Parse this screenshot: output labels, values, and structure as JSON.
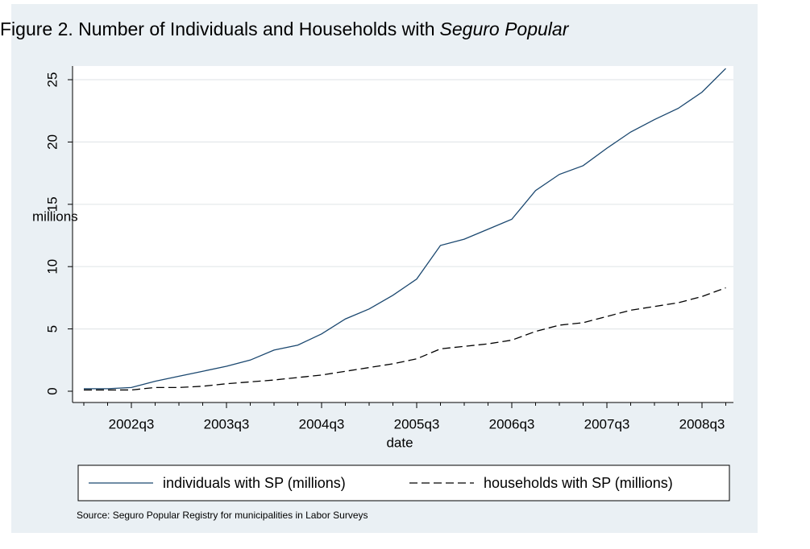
{
  "chart_data": {
    "type": "line",
    "title": "Figure 2. Number of Individuals and Households with",
    "title_emphasis": "Seguro Popular",
    "y_label": "millions",
    "x_label": "date",
    "source": "Source: Seguro Popular Registry for municipalities in Labor Surveys",
    "categories": [
      null,
      null,
      "2002q3",
      null,
      null,
      null,
      "2003q3",
      null,
      null,
      null,
      "2004q3",
      null,
      null,
      null,
      "2005q3",
      null,
      null,
      null,
      "2006q3",
      null,
      null,
      null,
      "2007q3",
      null,
      null,
      null,
      "2008q3",
      null
    ],
    "series": [
      {
        "name": "individuals with SP (millions)",
        "color": "#1a476f",
        "dash": "solid",
        "values": [
          0.2,
          0.2,
          0.3,
          0.8,
          1.2,
          1.6,
          2.0,
          2.5,
          3.3,
          3.7,
          4.6,
          5.8,
          6.6,
          7.7,
          9.0,
          11.7,
          12.2,
          13.0,
          13.8,
          16.1,
          17.4,
          18.1,
          19.5,
          20.8,
          21.8,
          22.7,
          24.0,
          25.9
        ]
      },
      {
        "name": "households with SP (millions)",
        "color": "#000000",
        "dash": "dashed",
        "values": [
          0.1,
          0.1,
          0.1,
          0.3,
          0.3,
          0.4,
          0.6,
          0.75,
          0.9,
          1.1,
          1.3,
          1.6,
          1.9,
          2.2,
          2.6,
          3.4,
          3.6,
          3.8,
          4.1,
          4.8,
          5.3,
          5.5,
          6.0,
          6.5,
          6.8,
          7.1,
          7.6,
          8.3
        ]
      }
    ],
    "ylim": [
      0,
      25
    ],
    "yticks": [
      0,
      5,
      10,
      15,
      20,
      25
    ],
    "grid": true
  }
}
